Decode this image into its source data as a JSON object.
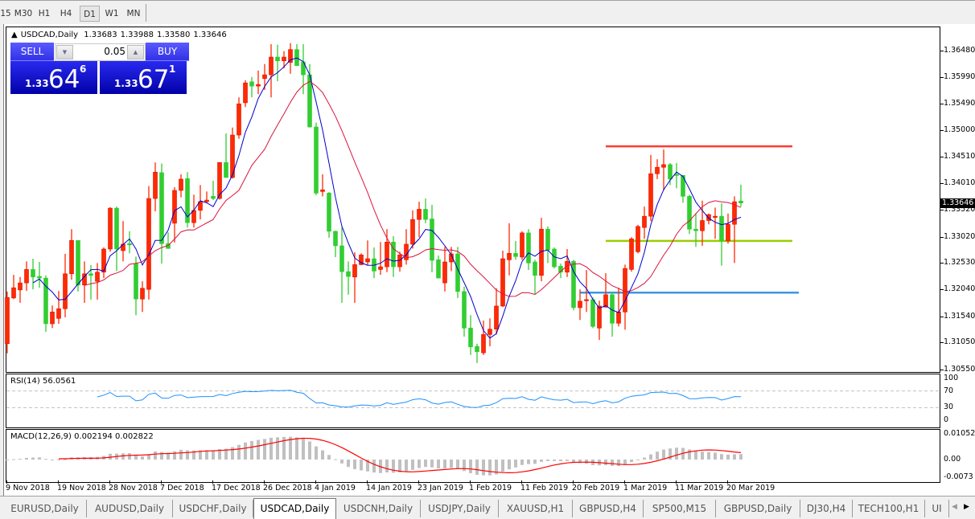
{
  "toolbar": {
    "timeframes": [
      "15",
      "M30",
      "H1",
      "H4",
      "D1",
      "W1",
      "MN"
    ],
    "active": "D1"
  },
  "header": {
    "symbol": "USDCAD,Daily",
    "open": "1.33683",
    "high": "1.33988",
    "low": "1.33580",
    "close": "1.33646"
  },
  "trade_panel": {
    "sell_label": "SELL",
    "buy_label": "BUY",
    "lot": "0.05",
    "bid": {
      "prefix": "1.33",
      "big": "64",
      "sup": "6"
    },
    "ask": {
      "prefix": "1.33",
      "big": "67",
      "sup": "1"
    },
    "button_color": "#3c3cf5"
  },
  "price_axis": {
    "ticks": [
      "1.36480",
      "1.35990",
      "1.35490",
      "1.35000",
      "1.34510",
      "1.34010",
      "1.33520",
      "1.33020",
      "1.32530",
      "1.32040",
      "1.31540",
      "1.31050",
      "1.30550"
    ],
    "current": "1.33646"
  },
  "rsi": {
    "title": "RSI(14) 56.0561",
    "ticks": [
      "100",
      "70",
      "30",
      "0"
    ],
    "levels": [
      70,
      30
    ],
    "color": "#1e90ff"
  },
  "macd": {
    "title": "MACD(12,26,9) 0.002194 0.002822",
    "ticks": [
      "0.010525",
      "0.00",
      "-0.0073"
    ],
    "hist_color": "#c0c0c0",
    "signal_color": "#ff0000"
  },
  "chart_data": {
    "type": "candlestick",
    "symbol": "USDCAD",
    "timeframe": "Daily",
    "ylim": [
      1.3055,
      1.3695
    ],
    "up_color": "#ff2a00",
    "down_color": "#32cd32",
    "ma_colors": [
      "#0000cd",
      "#dc143c"
    ],
    "x_ticks": [
      {
        "label": "9 Nov 2018",
        "bar": 0
      },
      {
        "label": "19 Nov 2018",
        "bar": 8
      },
      {
        "label": "28 Nov 2018",
        "bar": 16
      },
      {
        "label": "7 Dec 2018",
        "bar": 24
      },
      {
        "label": "17 Dec 2018",
        "bar": 32
      },
      {
        "label": "26 Dec 2018",
        "bar": 40
      },
      {
        "label": "4 Jan 2019",
        "bar": 48
      },
      {
        "label": "14 Jan 2019",
        "bar": 56
      },
      {
        "label": "23 Jan 2019",
        "bar": 64
      },
      {
        "label": "1 Feb 2019",
        "bar": 72
      },
      {
        "label": "11 Feb 2019",
        "bar": 80
      },
      {
        "label": "20 Feb 2019",
        "bar": 88
      },
      {
        "label": "1 Mar 2019",
        "bar": 96
      },
      {
        "label": "11 Mar 2019",
        "bar": 104
      },
      {
        "label": "20 Mar 2019",
        "bar": 112
      }
    ],
    "hlines": [
      {
        "price": 1.347,
        "color": "#ff3b30",
        "from_bar": 93,
        "to_bar": 122
      },
      {
        "price": 1.3294,
        "color": "#9acd00",
        "from_bar": 93,
        "to_bar": 122
      },
      {
        "price": 1.3198,
        "color": "#3c96e6",
        "from_bar": 89,
        "to_bar": 123
      }
    ],
    "ohlc": [
      [
        1.3103,
        1.32,
        1.3085,
        1.3189
      ],
      [
        1.3188,
        1.3231,
        1.3186,
        1.3207
      ],
      [
        1.3203,
        1.3227,
        1.3179,
        1.3216
      ],
      [
        1.3216,
        1.3256,
        1.3201,
        1.3241
      ],
      [
        1.3241,
        1.3261,
        1.3204,
        1.3227
      ],
      [
        1.3228,
        1.3255,
        1.3207,
        1.3225
      ],
      [
        1.3225,
        1.323,
        1.3125,
        1.314
      ],
      [
        1.314,
        1.3174,
        1.3132,
        1.3162
      ],
      [
        1.315,
        1.3201,
        1.314,
        1.3168
      ],
      [
        1.3168,
        1.327,
        1.3152,
        1.3233
      ],
      [
        1.3233,
        1.3316,
        1.3222,
        1.3295
      ],
      [
        1.3295,
        1.3295,
        1.32,
        1.3212
      ],
      [
        1.3212,
        1.3256,
        1.3179,
        1.3233
      ],
      [
        1.3233,
        1.3249,
        1.3185,
        1.323
      ],
      [
        1.3219,
        1.3253,
        1.3185,
        1.3236
      ],
      [
        1.3236,
        1.3282,
        1.3225,
        1.3279
      ],
      [
        1.3279,
        1.3357,
        1.3274,
        1.3355
      ],
      [
        1.3355,
        1.3358,
        1.3238,
        1.3279
      ],
      [
        1.3276,
        1.3331,
        1.3256,
        1.3288
      ],
      [
        1.3289,
        1.3312,
        1.3271,
        1.3288
      ],
      [
        1.3252,
        1.3265,
        1.3156,
        1.3186
      ],
      [
        1.3186,
        1.3219,
        1.3162,
        1.3206
      ],
      [
        1.3204,
        1.3396,
        1.3185,
        1.3373
      ],
      [
        1.3373,
        1.344,
        1.3349,
        1.3422
      ],
      [
        1.3421,
        1.3438,
        1.3252,
        1.3289
      ],
      [
        1.3289,
        1.331,
        1.328,
        1.328
      ],
      [
        1.3327,
        1.3394,
        1.3291,
        1.3388
      ],
      [
        1.3388,
        1.3418,
        1.3375,
        1.3409
      ],
      [
        1.341,
        1.3422,
        1.3319,
        1.3328
      ],
      [
        1.3328,
        1.338,
        1.3319,
        1.3351
      ],
      [
        1.3351,
        1.3398,
        1.3334,
        1.3367
      ],
      [
        1.3367,
        1.3386,
        1.3364,
        1.337
      ],
      [
        1.3377,
        1.3406,
        1.337,
        1.3373
      ],
      [
        1.3373,
        1.344,
        1.3371,
        1.344
      ],
      [
        1.344,
        1.3494,
        1.3412,
        1.3412
      ],
      [
        1.3412,
        1.3505,
        1.341,
        1.3491
      ],
      [
        1.3491,
        1.3561,
        1.3484,
        1.3549
      ],
      [
        1.3551,
        1.3593,
        1.3543,
        1.3588
      ],
      [
        1.359,
        1.3599,
        1.3561,
        1.3582
      ],
      [
        1.3582,
        1.3611,
        1.3567,
        1.3585
      ],
      [
        1.3596,
        1.3623,
        1.3575,
        1.3603
      ],
      [
        1.3603,
        1.366,
        1.3561,
        1.3636
      ],
      [
        1.3636,
        1.3659,
        1.3591,
        1.3629
      ],
      [
        1.3629,
        1.3647,
        1.3615,
        1.3636
      ],
      [
        1.3626,
        1.3662,
        1.3605,
        1.365
      ],
      [
        1.365,
        1.366,
        1.362,
        1.362
      ],
      [
        1.3627,
        1.366,
        1.3567,
        1.3603
      ],
      [
        1.3603,
        1.3623,
        1.3505,
        1.3506
      ],
      [
        1.3506,
        1.3514,
        1.3379,
        1.3383
      ],
      [
        1.3386,
        1.3418,
        1.3377,
        1.3389
      ],
      [
        1.3383,
        1.3385,
        1.33,
        1.3312
      ],
      [
        1.3312,
        1.3313,
        1.3264,
        1.3285
      ],
      [
        1.3285,
        1.3319,
        1.3179,
        1.3237
      ],
      [
        1.3237,
        1.3256,
        1.3194,
        1.3228
      ],
      [
        1.3227,
        1.3273,
        1.3179,
        1.325
      ],
      [
        1.325,
        1.3271,
        1.3249,
        1.3268
      ],
      [
        1.3255,
        1.3295,
        1.3249,
        1.3261
      ],
      [
        1.3261,
        1.3282,
        1.3225,
        1.3238
      ],
      [
        1.3241,
        1.3292,
        1.3231,
        1.3246
      ],
      [
        1.3246,
        1.3316,
        1.3236,
        1.3292
      ],
      [
        1.3292,
        1.3303,
        1.3227,
        1.3246
      ],
      [
        1.3246,
        1.3274,
        1.3237,
        1.3268
      ],
      [
        1.3259,
        1.3316,
        1.325,
        1.3288
      ],
      [
        1.3288,
        1.3351,
        1.328,
        1.3334
      ],
      [
        1.3334,
        1.3367,
        1.3301,
        1.3353
      ],
      [
        1.3353,
        1.3373,
        1.3327,
        1.3334
      ],
      [
        1.3335,
        1.3361,
        1.3236,
        1.3258
      ],
      [
        1.3259,
        1.3267,
        1.3225,
        1.3225
      ],
      [
        1.3216,
        1.3283,
        1.32,
        1.3255
      ],
      [
        1.3255,
        1.3283,
        1.3238,
        1.327
      ],
      [
        1.327,
        1.3283,
        1.3188,
        1.32
      ],
      [
        1.32,
        1.3209,
        1.3116,
        1.3132
      ],
      [
        1.3132,
        1.3156,
        1.3082,
        1.3097
      ],
      [
        1.3098,
        1.3103,
        1.3067,
        1.3088
      ],
      [
        1.3086,
        1.3146,
        1.3082,
        1.312
      ],
      [
        1.312,
        1.315,
        1.3098,
        1.313
      ],
      [
        1.313,
        1.3206,
        1.312,
        1.3173
      ],
      [
        1.3173,
        1.3276,
        1.3171,
        1.3261
      ],
      [
        1.3259,
        1.3327,
        1.323,
        1.3271
      ],
      [
        1.3271,
        1.3294,
        1.3259,
        1.3265
      ],
      [
        1.3264,
        1.3312,
        1.3259,
        1.3309
      ],
      [
        1.3309,
        1.3316,
        1.324,
        1.3253
      ],
      [
        1.3255,
        1.3259,
        1.3194,
        1.323
      ],
      [
        1.323,
        1.3337,
        1.3219,
        1.3316
      ],
      [
        1.3316,
        1.3321,
        1.3253,
        1.3277
      ],
      [
        1.3279,
        1.3282,
        1.3243,
        1.3246
      ],
      [
        1.3247,
        1.3252,
        1.3225,
        1.3236
      ],
      [
        1.3236,
        1.3279,
        1.3227,
        1.3256
      ],
      [
        1.3256,
        1.3259,
        1.3165,
        1.317
      ],
      [
        1.317,
        1.3204,
        1.3147,
        1.3182
      ],
      [
        1.3183,
        1.324,
        1.3162,
        1.3185
      ],
      [
        1.3185,
        1.3189,
        1.3132,
        1.3135
      ],
      [
        1.3132,
        1.3183,
        1.311,
        1.3173
      ],
      [
        1.3171,
        1.3234,
        1.317,
        1.3194
      ],
      [
        1.3194,
        1.32,
        1.3116,
        1.3141
      ],
      [
        1.3141,
        1.3207,
        1.3135,
        1.3162
      ],
      [
        1.3162,
        1.325,
        1.3129,
        1.3243
      ],
      [
        1.3241,
        1.3301,
        1.3237,
        1.3298
      ],
      [
        1.3274,
        1.3324,
        1.3271,
        1.3321
      ],
      [
        1.3319,
        1.3358,
        1.3298,
        1.334
      ],
      [
        1.334,
        1.3454,
        1.3331,
        1.3419
      ],
      [
        1.3419,
        1.3446,
        1.3409,
        1.3431
      ],
      [
        1.3431,
        1.3464,
        1.3388,
        1.3436
      ],
      [
        1.3436,
        1.3439,
        1.3398,
        1.3409
      ],
      [
        1.3418,
        1.3439,
        1.3392,
        1.3416
      ],
      [
        1.3416,
        1.3416,
        1.3365,
        1.3377
      ],
      [
        1.3377,
        1.338,
        1.3307,
        1.3316
      ],
      [
        1.3316,
        1.3345,
        1.3283,
        1.3313
      ],
      [
        1.3313,
        1.3369,
        1.3285,
        1.3332
      ],
      [
        1.3332,
        1.3345,
        1.3325,
        1.3343
      ],
      [
        1.3339,
        1.3356,
        1.3298,
        1.334
      ],
      [
        1.334,
        1.3364,
        1.3248,
        1.3294
      ],
      [
        1.3294,
        1.3345,
        1.3289,
        1.3325
      ],
      [
        1.3325,
        1.3377,
        1.3253,
        1.3367
      ],
      [
        1.33683,
        1.33988,
        1.3358,
        1.33646
      ]
    ]
  },
  "tabs": [
    "EURUSD,Daily",
    "AUDUSD,Daily",
    "USDCHF,Daily",
    "USDCAD,Daily",
    "USDCNH,Daily",
    "USDJPY,Daily",
    "XAUUSD,H1",
    "GBPUSD,H4",
    "SP500,M15",
    "GBPUSD,Daily",
    "DJ30,H4",
    "TECH100,H1",
    "UI"
  ],
  "active_tab": "USDCAD,Daily"
}
